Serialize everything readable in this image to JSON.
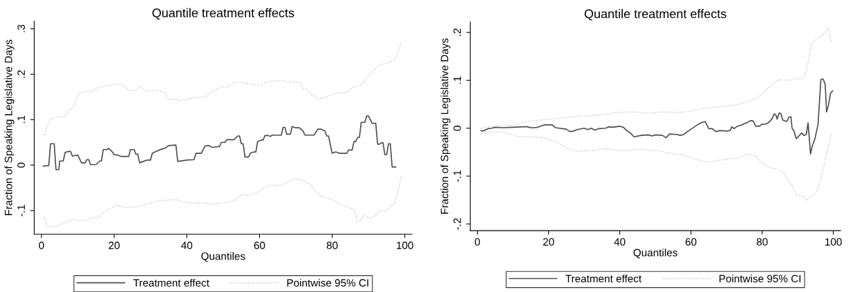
{
  "chart_data": [
    {
      "type": "line",
      "title": "Quantile treatment effects",
      "xlabel": "Quantiles",
      "ylabel": "Fraction of Speaking Legislative Days",
      "xlim": [
        -2,
        102
      ],
      "xticks": [
        0,
        20,
        40,
        60,
        80,
        100
      ],
      "ylim": [
        -0.152,
        0.317
      ],
      "yticks": [
        {
          "value": -0.1,
          "label": "-.1"
        },
        {
          "value": 0,
          "label": "0"
        },
        {
          "value": 0.1,
          "label": ".1"
        },
        {
          "value": 0.2,
          "label": ".2"
        },
        {
          "value": 0.3,
          "label": ".3"
        }
      ],
      "grid": false,
      "legend": "bottom",
      "series": [
        {
          "name": "Treatment effect",
          "color": "#4d4d4d",
          "line_style": "solid",
          "x": [
            0.5,
            2,
            2.5,
            3.5,
            4,
            4.8,
            5,
            6,
            6.5,
            7.5,
            8,
            8.5,
            10,
            11,
            12,
            12.5,
            13,
            13.5,
            15,
            16,
            16.5,
            17,
            18,
            18.5,
            19.5,
            20,
            21,
            22,
            24,
            24.5,
            25.5,
            26,
            26.5,
            27,
            28,
            29,
            30,
            30.5,
            31.5,
            33,
            34,
            35,
            37,
            37.5,
            40,
            42,
            42.5,
            44,
            45,
            46,
            47,
            49,
            49.5,
            50.5,
            51,
            53,
            54,
            54.5,
            55,
            55.5,
            56,
            57,
            57.5,
            58.5,
            59,
            59.5,
            60.5,
            61,
            61.5,
            62.5,
            63,
            63.5,
            66,
            66.5,
            67,
            67.5,
            68.5,
            69,
            70,
            71,
            72,
            72.5,
            75,
            75.5,
            76,
            77,
            78,
            78.5,
            79,
            80,
            81,
            82,
            84,
            84.5,
            85.5,
            86,
            86.5,
            87,
            87.5,
            88,
            89,
            89.5,
            90,
            91,
            92,
            92.5,
            93,
            93.5,
            94,
            94.5,
            95,
            95.5,
            96,
            96.5,
            97.5
          ],
          "values": [
            -0.002,
            -0.001,
            0.047,
            0.047,
            -0.01,
            -0.01,
            0.009,
            0.009,
            0.028,
            0.03,
            0.03,
            0.02,
            0.022,
            0.005,
            0.005,
            0.012,
            0.012,
            0.001,
            0.001,
            0.009,
            0.009,
            0.034,
            0.034,
            0.037,
            0.029,
            0.023,
            0.022,
            0.019,
            0.019,
            0.034,
            0.034,
            0.024,
            0.024,
            0.005,
            0.008,
            0.011,
            0.011,
            0.026,
            0.03,
            0.035,
            0.037,
            0.043,
            0.044,
            0.008,
            0.011,
            0.012,
            0.026,
            0.026,
            0.042,
            0.043,
            0.039,
            0.041,
            0.05,
            0.05,
            0.056,
            0.056,
            0.064,
            0.064,
            0.047,
            0.047,
            0.018,
            0.018,
            0.026,
            0.029,
            0.029,
            0.052,
            0.055,
            0.055,
            0.065,
            0.065,
            0.063,
            0.066,
            0.066,
            0.083,
            0.083,
            0.068,
            0.068,
            0.085,
            0.082,
            0.082,
            0.075,
            0.066,
            0.066,
            0.072,
            0.079,
            0.079,
            0.075,
            0.064,
            0.064,
            0.026,
            0.029,
            0.026,
            0.026,
            0.033,
            0.033,
            0.052,
            0.052,
            0.061,
            0.061,
            0.094,
            0.094,
            0.108,
            0.108,
            0.092,
            0.092,
            0.046,
            0.046,
            0.049,
            0.049,
            0.023,
            0.023,
            0.047,
            0.047,
            -0.004,
            -0.004
          ]
        },
        {
          "name": "Pointwise 95% CI",
          "color": "#c0c0c0",
          "line_style": "dotted",
          "x": [
            0.5,
            1,
            1.5,
            2.5,
            4,
            6.5,
            7.5,
            9,
            10,
            11,
            14,
            15,
            17,
            20,
            22,
            24,
            26,
            27,
            29,
            32,
            34,
            35,
            37,
            38,
            42,
            45,
            47,
            50,
            51,
            53,
            55,
            60,
            62,
            66,
            68,
            71,
            72,
            73,
            74,
            76,
            78,
            80,
            82,
            84,
            86,
            88,
            89,
            91,
            93,
            95,
            97,
            98,
            99
          ],
          "values": [
            0.064,
            0.068,
            0.084,
            0.102,
            0.105,
            0.108,
            0.119,
            0.13,
            0.155,
            0.16,
            0.163,
            0.169,
            0.173,
            0.177,
            0.179,
            0.164,
            0.164,
            0.174,
            0.163,
            0.164,
            0.159,
            0.145,
            0.145,
            0.141,
            0.148,
            0.15,
            0.163,
            0.173,
            0.171,
            0.182,
            0.182,
            0.175,
            0.183,
            0.187,
            0.183,
            0.182,
            0.169,
            0.167,
            0.157,
            0.146,
            0.149,
            0.155,
            0.159,
            0.159,
            0.173,
            0.175,
            0.187,
            0.206,
            0.219,
            0.225,
            0.23,
            0.246,
            0.269
          ]
        },
        {
          "color": "#c0c0c0",
          "line_style": "dotted",
          "x": [
            0.5,
            1,
            1.5,
            3,
            5,
            7,
            9,
            10,
            12,
            14,
            16,
            17,
            19,
            21,
            23,
            26,
            28,
            30,
            33,
            37,
            40,
            44,
            47,
            51,
            53,
            55,
            57,
            59,
            61,
            63,
            66,
            68,
            70,
            72,
            74,
            76,
            78,
            80,
            82,
            84,
            86,
            87,
            88,
            89,
            90,
            91,
            92,
            93,
            95,
            96,
            97,
            98,
            99
          ],
          "values": [
            -0.116,
            -0.116,
            -0.135,
            -0.135,
            -0.132,
            -0.125,
            -0.12,
            -0.122,
            -0.122,
            -0.116,
            -0.115,
            -0.104,
            -0.095,
            -0.088,
            -0.094,
            -0.092,
            -0.088,
            -0.083,
            -0.078,
            -0.076,
            -0.083,
            -0.083,
            -0.086,
            -0.082,
            -0.079,
            -0.065,
            -0.067,
            -0.061,
            -0.051,
            -0.045,
            -0.044,
            -0.037,
            -0.029,
            -0.034,
            -0.043,
            -0.064,
            -0.072,
            -0.075,
            -0.086,
            -0.091,
            -0.099,
            -0.124,
            -0.121,
            -0.11,
            -0.116,
            -0.116,
            -0.11,
            -0.101,
            -0.1,
            -0.09,
            -0.086,
            -0.062,
            -0.024
          ]
        }
      ]
    },
    {
      "type": "line",
      "title": "Quantile treatment effects",
      "xlabel": "Quantiles",
      "ylabel": "Fraction of Speaking Legislative Days",
      "xlim": [
        -2,
        102
      ],
      "xticks": [
        0,
        20,
        40,
        60,
        80,
        100
      ],
      "ylim": [
        -0.214,
        0.222
      ],
      "yticks": [
        {
          "value": -0.2,
          "label": "-.2"
        },
        {
          "value": -0.1,
          "label": "-.1"
        },
        {
          "value": 0,
          "label": "0"
        },
        {
          "value": 0.1,
          "label": ".1"
        },
        {
          "value": 0.2,
          "label": ".2"
        }
      ],
      "grid": false,
      "legend": "bottom",
      "series": [
        {
          "name": "Treatment effect",
          "color": "#4d4d4d",
          "line_style": "solid",
          "x": [
            1,
            1.5,
            3,
            4,
            5,
            7,
            10,
            13,
            14,
            15,
            16,
            17,
            18,
            19,
            20,
            21,
            22,
            23,
            24,
            25,
            26,
            27,
            28,
            30,
            31,
            32,
            33,
            34,
            36,
            37,
            38,
            39,
            40,
            41,
            42,
            43,
            44,
            46,
            48,
            49,
            50,
            52,
            53,
            54,
            56,
            57,
            58,
            59,
            61,
            62,
            63,
            64,
            65,
            66,
            67,
            68,
            70,
            71,
            71.5,
            72.1,
            73,
            74,
            75.8,
            76.8,
            77.5,
            78.2,
            79.1,
            79.9,
            81.2,
            82,
            82.8,
            83.4,
            83.9,
            84.2,
            84.8,
            85.3,
            85.8,
            86.9,
            87.5,
            88.1,
            88.4,
            88.9,
            89.6,
            91.1,
            91.7,
            92.4,
            92.9,
            93.6,
            94.1,
            94.8,
            95.7,
            96.5,
            97.1,
            97.7,
            98.1,
            98.6,
            99.2,
            99.8
          ],
          "values": [
            -0.005,
            -0.006,
            -0.001,
            0,
            0.002,
            0.001,
            0.002,
            0.003,
            0.003,
            0.001,
            0.001,
            0.002,
            0.005,
            0.007,
            0.007,
            0.007,
            0.001,
            0,
            -0.001,
            -0.002,
            -0.007,
            -0.006,
            -0.003,
            0,
            -0.003,
            0,
            -0.004,
            -0.001,
            0,
            0.003,
            0.002,
            0.003,
            0.004,
            0.002,
            -0.005,
            -0.01,
            -0.018,
            -0.015,
            -0.014,
            -0.016,
            -0.014,
            -0.015,
            -0.02,
            -0.012,
            -0.013,
            -0.015,
            -0.013,
            -0.007,
            0.003,
            0.008,
            0.012,
            0.014,
            -0.001,
            -0.001,
            -0.007,
            -0.005,
            -0.006,
            -0.005,
            0.003,
            -0.001,
            0.004,
            0.006,
            0.012,
            0.016,
            0.015,
            0.004,
            0.004,
            0.008,
            0.009,
            0.013,
            0.02,
            0.03,
            0.027,
            0.019,
            0.032,
            0.03,
            0.017,
            0.014,
            0.023,
            0.024,
            0,
            -0.005,
            -0.022,
            -0.01,
            -0.015,
            -0.013,
            0.011,
            -0.054,
            -0.036,
            -0.023,
            0.008,
            0.102,
            0.103,
            0.092,
            0.034,
            0.047,
            0.073,
            0.078
          ]
        },
        {
          "name": "Pointwise 95% CI",
          "color": "#c0c0c0",
          "line_style": "dotted",
          "x": [
            1,
            3,
            6,
            10,
            14,
            20,
            25,
            28,
            32,
            36,
            39,
            44,
            48,
            52,
            57,
            61,
            64,
            68,
            72,
            76,
            79,
            81,
            83,
            84.5,
            88,
            90,
            91.5,
            92.5,
            94,
            95.2,
            96.5,
            98,
            98.5,
            99.5
          ],
          "values": [
            -0.001,
            0.003,
            0.005,
            0.006,
            0.014,
            0.019,
            0.022,
            0.025,
            0.026,
            0.029,
            0.033,
            0.034,
            0.031,
            0.034,
            0.033,
            0.037,
            0.042,
            0.045,
            0.048,
            0.055,
            0.065,
            0.078,
            0.093,
            0.101,
            0.1,
            0.104,
            0.103,
            0.122,
            0.178,
            0.185,
            0.193,
            0.202,
            0.209,
            0.178
          ]
        },
        {
          "color": "#c0c0c0",
          "line_style": "dotted",
          "x": [
            1,
            3,
            5,
            8,
            12,
            16,
            19,
            22,
            25,
            28,
            32,
            36,
            41,
            46,
            51,
            55,
            58,
            61,
            65,
            67,
            71,
            73,
            76,
            78,
            80,
            82,
            84,
            86,
            87.5,
            88.5,
            89.5,
            91.5,
            92.5,
            94,
            95.5,
            96.5,
            97.5,
            98.5,
            99.5
          ],
          "values": [
            -0.011,
            -0.009,
            -0.007,
            -0.01,
            -0.018,
            -0.018,
            -0.021,
            -0.028,
            -0.041,
            -0.048,
            -0.047,
            -0.043,
            -0.047,
            -0.044,
            -0.047,
            -0.054,
            -0.056,
            -0.064,
            -0.072,
            -0.068,
            -0.064,
            -0.062,
            -0.054,
            -0.058,
            -0.072,
            -0.082,
            -0.085,
            -0.093,
            -0.11,
            -0.12,
            -0.139,
            -0.142,
            -0.151,
            -0.141,
            -0.131,
            -0.105,
            -0.074,
            -0.043,
            -0.01
          ]
        }
      ]
    }
  ]
}
